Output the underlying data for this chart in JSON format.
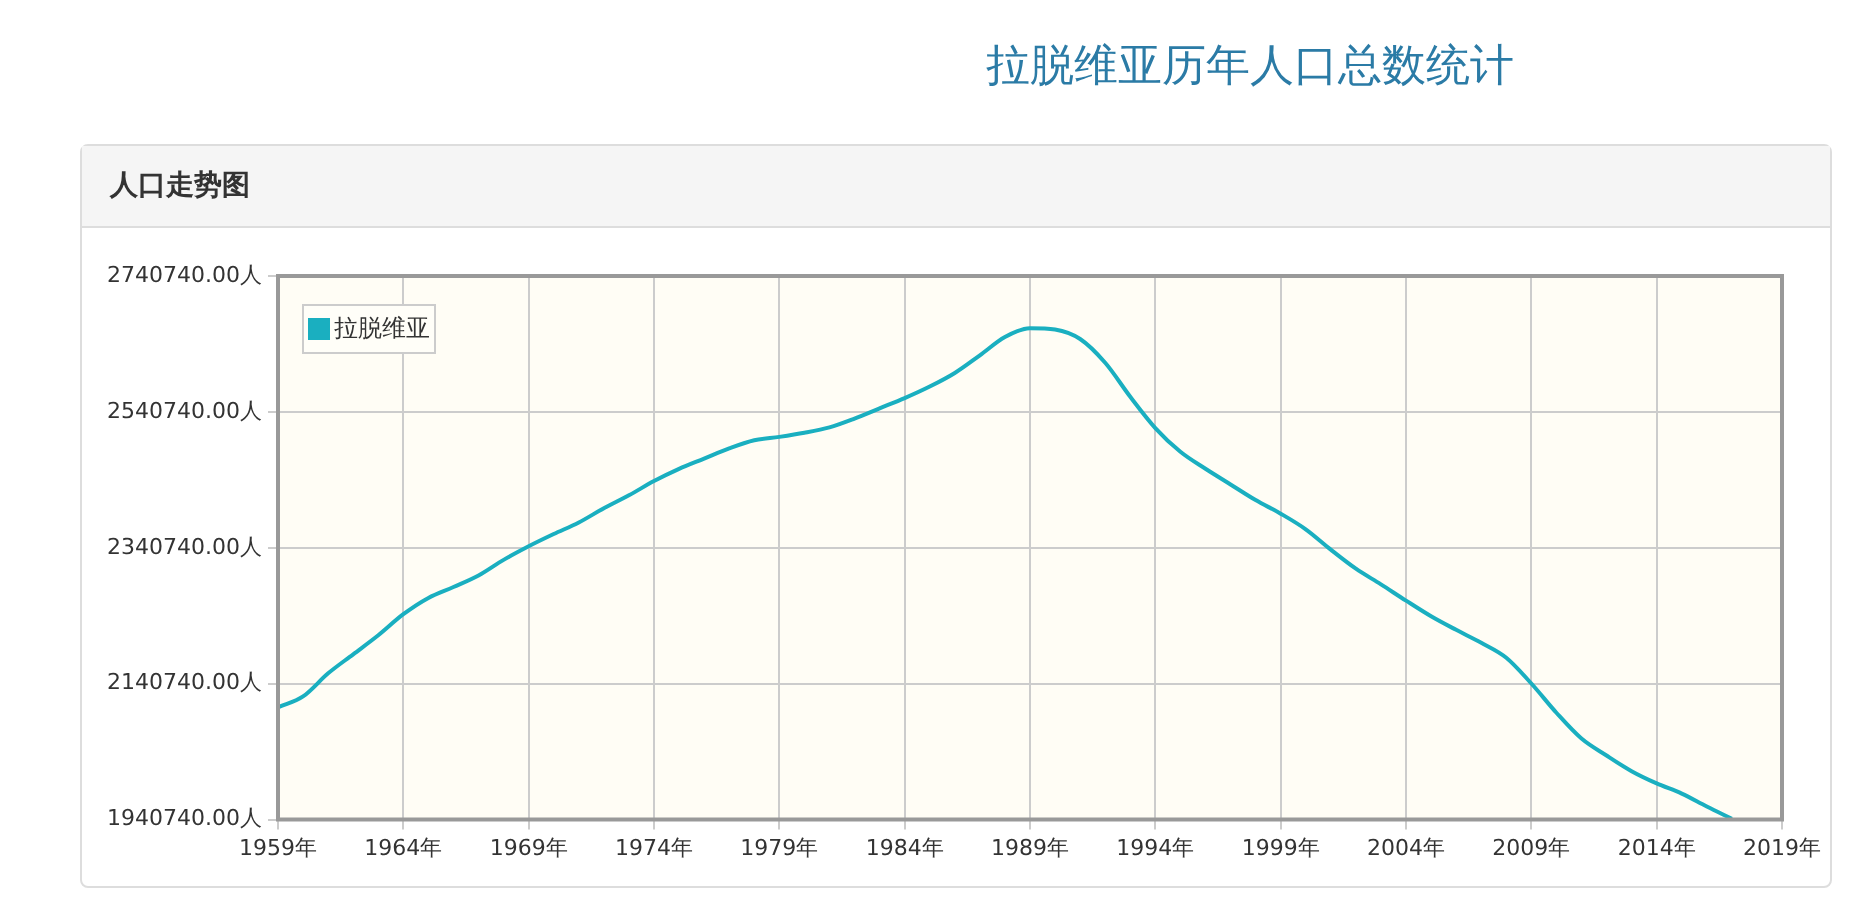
{
  "chart_data": {
    "type": "line",
    "title": "拉脱维亚历年人口总数统计",
    "subtitle": "人口走势图",
    "x": [
      1959,
      1960,
      1961,
      1962,
      1963,
      1964,
      1965,
      1966,
      1967,
      1968,
      1969,
      1970,
      1971,
      1972,
      1973,
      1974,
      1975,
      1976,
      1977,
      1978,
      1979,
      1980,
      1981,
      1982,
      1983,
      1984,
      1985,
      1986,
      1987,
      1988,
      1989,
      1990,
      1991,
      1992,
      1993,
      1994,
      1995,
      1996,
      1997,
      1998,
      1999,
      2000,
      2001,
      2002,
      2003,
      2004,
      2005,
      2006,
      2007,
      2008,
      2009,
      2010,
      2011,
      2012,
      2013,
      2014,
      2015,
      2016,
      2017
    ],
    "series": [
      {
        "name": "拉脱维亚",
        "color": "#1aafc0",
        "values": [
          2106000,
          2122000,
          2156000,
          2184000,
          2212000,
          2243000,
          2267000,
          2283000,
          2300000,
          2323000,
          2343000,
          2361000,
          2378000,
          2399000,
          2418000,
          2439000,
          2457000,
          2472000,
          2487000,
          2499000,
          2504000,
          2510000,
          2518000,
          2531000,
          2546000,
          2561000,
          2578000,
          2598000,
          2624000,
          2651000,
          2664000,
          2662000,
          2648000,
          2613000,
          2563000,
          2517000,
          2482000,
          2457000,
          2434000,
          2411000,
          2391000,
          2368000,
          2338000,
          2310000,
          2287000,
          2263000,
          2240000,
          2220000,
          2201000,
          2179000,
          2141000,
          2098000,
          2060000,
          2035000,
          2012000,
          1994000,
          1979000,
          1960000,
          1942000
        ]
      }
    ],
    "xlim": [
      1959,
      2019
    ],
    "xticks": [
      {
        "value": 1959,
        "label": "1959年"
      },
      {
        "value": 1964,
        "label": "1964年"
      },
      {
        "value": 1969,
        "label": "1969年"
      },
      {
        "value": 1974,
        "label": "1974年"
      },
      {
        "value": 1979,
        "label": "1979年"
      },
      {
        "value": 1984,
        "label": "1984年"
      },
      {
        "value": 1989,
        "label": "1989年"
      },
      {
        "value": 1994,
        "label": "1994年"
      },
      {
        "value": 1999,
        "label": "1999年"
      },
      {
        "value": 2004,
        "label": "2004年"
      },
      {
        "value": 2009,
        "label": "2009年"
      },
      {
        "value": 2014,
        "label": "2014年"
      },
      {
        "value": 2019,
        "label": "2019年"
      }
    ],
    "ylim": [
      1940740,
      2740740
    ],
    "yticks": [
      {
        "value": 1940740,
        "label": "1940740.00人"
      },
      {
        "value": 2140740,
        "label": "2140740.00人"
      },
      {
        "value": 2340740,
        "label": "2340740.00人"
      },
      {
        "value": 2540740,
        "label": "2540740.00人"
      },
      {
        "value": 2740740,
        "label": "2740740.00人"
      }
    ],
    "grid": true,
    "legend": "top left",
    "marker": "none",
    "line_style": "solid"
  }
}
